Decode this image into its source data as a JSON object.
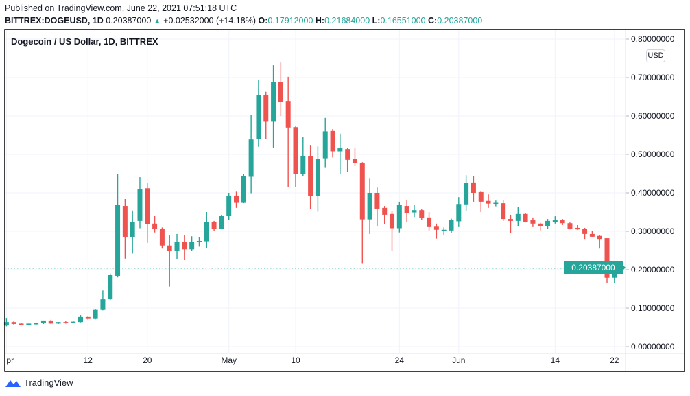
{
  "header": {
    "published": "Published on TradingView.com, June 22, 2021 07:51:18 UTC",
    "symbol": "BITTREX:DOGEUSD, 1D",
    "last": "0.20387000",
    "change": "+0.02532000 (+14.18%)",
    "o_label": "O:",
    "o": "0.17912000",
    "h_label": "H:",
    "h": "0.21684000",
    "l_label": "L:",
    "l": "0.16551000",
    "c_label": "C:",
    "c": "0.20387000"
  },
  "chart_title": "Dogecoin / US Dollar, 1D, BITTREX",
  "currency_button": "USD",
  "price_tag": "0.20387000",
  "footer": {
    "brand": "TradingView"
  },
  "colors": {
    "up": "#26a69a",
    "down": "#ef5350",
    "grid": "#f0f3fa"
  },
  "chart_data": {
    "type": "candlestick",
    "title": "Dogecoin / US Dollar, 1D, BITTREX",
    "start_date": "2021-04-01",
    "ylim": [
      0,
      0.8
    ],
    "grid": true,
    "y_ticks": [
      "0.00000000",
      "0.10000000",
      "0.20000000",
      "0.30000000",
      "0.40000000",
      "0.50000000",
      "0.60000000",
      "0.70000000",
      "0.80000000"
    ],
    "x_ticks": [
      {
        "day": 0,
        "label": "pr"
      },
      {
        "day": 11,
        "label": "12"
      },
      {
        "day": 19,
        "label": "20"
      },
      {
        "day": 30,
        "label": "May"
      },
      {
        "day": 39,
        "label": "10"
      },
      {
        "day": 53,
        "label": "24"
      },
      {
        "day": 61,
        "label": "Jun"
      },
      {
        "day": 74,
        "label": "14"
      },
      {
        "day": 82,
        "label": "22"
      }
    ],
    "last_price": 0.20387,
    "ohlc": [
      [
        0.055,
        0.073,
        0.053,
        0.064
      ],
      [
        0.064,
        0.066,
        0.057,
        0.059
      ],
      [
        0.06,
        0.062,
        0.056,
        0.057
      ],
      [
        0.057,
        0.06,
        0.055,
        0.06
      ],
      [
        0.058,
        0.062,
        0.056,
        0.061
      ],
      [
        0.061,
        0.068,
        0.059,
        0.068
      ],
      [
        0.068,
        0.07,
        0.059,
        0.06
      ],
      [
        0.06,
        0.064,
        0.059,
        0.064
      ],
      [
        0.064,
        0.067,
        0.06,
        0.062
      ],
      [
        0.062,
        0.067,
        0.061,
        0.065
      ],
      [
        0.064,
        0.082,
        0.063,
        0.077
      ],
      [
        0.077,
        0.08,
        0.07,
        0.072
      ],
      [
        0.072,
        0.098,
        0.071,
        0.097
      ],
      [
        0.097,
        0.146,
        0.094,
        0.123
      ],
      [
        0.123,
        0.19,
        0.121,
        0.186
      ],
      [
        0.184,
        0.45,
        0.18,
        0.368
      ],
      [
        0.366,
        0.384,
        0.229,
        0.284
      ],
      [
        0.284,
        0.354,
        0.242,
        0.325
      ],
      [
        0.327,
        0.441,
        0.308,
        0.41
      ],
      [
        0.412,
        0.425,
        0.27,
        0.318
      ],
      [
        0.32,
        0.34,
        0.297,
        0.306
      ],
      [
        0.307,
        0.31,
        0.255,
        0.263
      ],
      [
        0.263,
        0.29,
        0.156,
        0.25
      ],
      [
        0.25,
        0.293,
        0.228,
        0.273
      ],
      [
        0.272,
        0.29,
        0.225,
        0.253
      ],
      [
        0.253,
        0.287,
        0.249,
        0.273
      ],
      [
        0.273,
        0.284,
        0.26,
        0.275
      ],
      [
        0.274,
        0.35,
        0.257,
        0.325
      ],
      [
        0.325,
        0.327,
        0.3,
        0.306
      ],
      [
        0.306,
        0.343,
        0.305,
        0.341
      ],
      [
        0.34,
        0.4,
        0.33,
        0.393
      ],
      [
        0.393,
        0.403,
        0.361,
        0.374
      ],
      [
        0.374,
        0.45,
        0.373,
        0.443
      ],
      [
        0.442,
        0.602,
        0.399,
        0.539
      ],
      [
        0.54,
        0.693,
        0.52,
        0.655
      ],
      [
        0.655,
        0.663,
        0.54,
        0.585
      ],
      [
        0.585,
        0.732,
        0.518,
        0.689
      ],
      [
        0.689,
        0.739,
        0.6,
        0.636
      ],
      [
        0.639,
        0.702,
        0.415,
        0.57
      ],
      [
        0.571,
        0.573,
        0.415,
        0.45
      ],
      [
        0.45,
        0.546,
        0.443,
        0.496
      ],
      [
        0.496,
        0.523,
        0.358,
        0.392
      ],
      [
        0.392,
        0.521,
        0.351,
        0.489
      ],
      [
        0.49,
        0.595,
        0.465,
        0.56
      ],
      [
        0.561,
        0.566,
        0.492,
        0.508
      ],
      [
        0.508,
        0.554,
        0.45,
        0.516
      ],
      [
        0.514,
        0.516,
        0.454,
        0.486
      ],
      [
        0.489,
        0.518,
        0.47,
        0.477
      ],
      [
        0.478,
        0.48,
        0.217,
        0.331
      ],
      [
        0.331,
        0.437,
        0.293,
        0.4
      ],
      [
        0.4,
        0.414,
        0.314,
        0.359
      ],
      [
        0.361,
        0.366,
        0.318,
        0.343
      ],
      [
        0.345,
        0.352,
        0.25,
        0.308
      ],
      [
        0.308,
        0.377,
        0.297,
        0.368
      ],
      [
        0.366,
        0.382,
        0.324,
        0.347
      ],
      [
        0.349,
        0.368,
        0.337,
        0.355
      ],
      [
        0.355,
        0.357,
        0.33,
        0.334
      ],
      [
        0.336,
        0.35,
        0.302,
        0.311
      ],
      [
        0.312,
        0.32,
        0.281,
        0.304
      ],
      [
        0.303,
        0.31,
        0.29,
        0.304
      ],
      [
        0.302,
        0.333,
        0.295,
        0.329
      ],
      [
        0.326,
        0.389,
        0.311,
        0.371
      ],
      [
        0.37,
        0.446,
        0.352,
        0.425
      ],
      [
        0.427,
        0.443,
        0.377,
        0.4
      ],
      [
        0.402,
        0.404,
        0.35,
        0.377
      ],
      [
        0.379,
        0.396,
        0.361,
        0.372
      ],
      [
        0.373,
        0.38,
        0.365,
        0.374
      ],
      [
        0.373,
        0.382,
        0.327,
        0.332
      ],
      [
        0.332,
        0.343,
        0.296,
        0.327
      ],
      [
        0.327,
        0.363,
        0.313,
        0.345
      ],
      [
        0.345,
        0.347,
        0.323,
        0.325
      ],
      [
        0.329,
        0.336,
        0.311,
        0.32
      ],
      [
        0.32,
        0.322,
        0.302,
        0.313
      ],
      [
        0.313,
        0.332,
        0.307,
        0.327
      ],
      [
        0.325,
        0.339,
        0.32,
        0.329
      ],
      [
        0.33,
        0.332,
        0.316,
        0.321
      ],
      [
        0.321,
        0.323,
        0.305,
        0.307
      ],
      [
        0.309,
        0.316,
        0.304,
        0.305
      ],
      [
        0.307,
        0.309,
        0.28,
        0.293
      ],
      [
        0.293,
        0.3,
        0.285,
        0.286
      ],
      [
        0.288,
        0.291,
        0.255,
        0.28
      ],
      [
        0.282,
        0.282,
        0.166,
        0.179
      ],
      [
        0.17912,
        0.21684,
        0.16551,
        0.20387
      ]
    ]
  }
}
